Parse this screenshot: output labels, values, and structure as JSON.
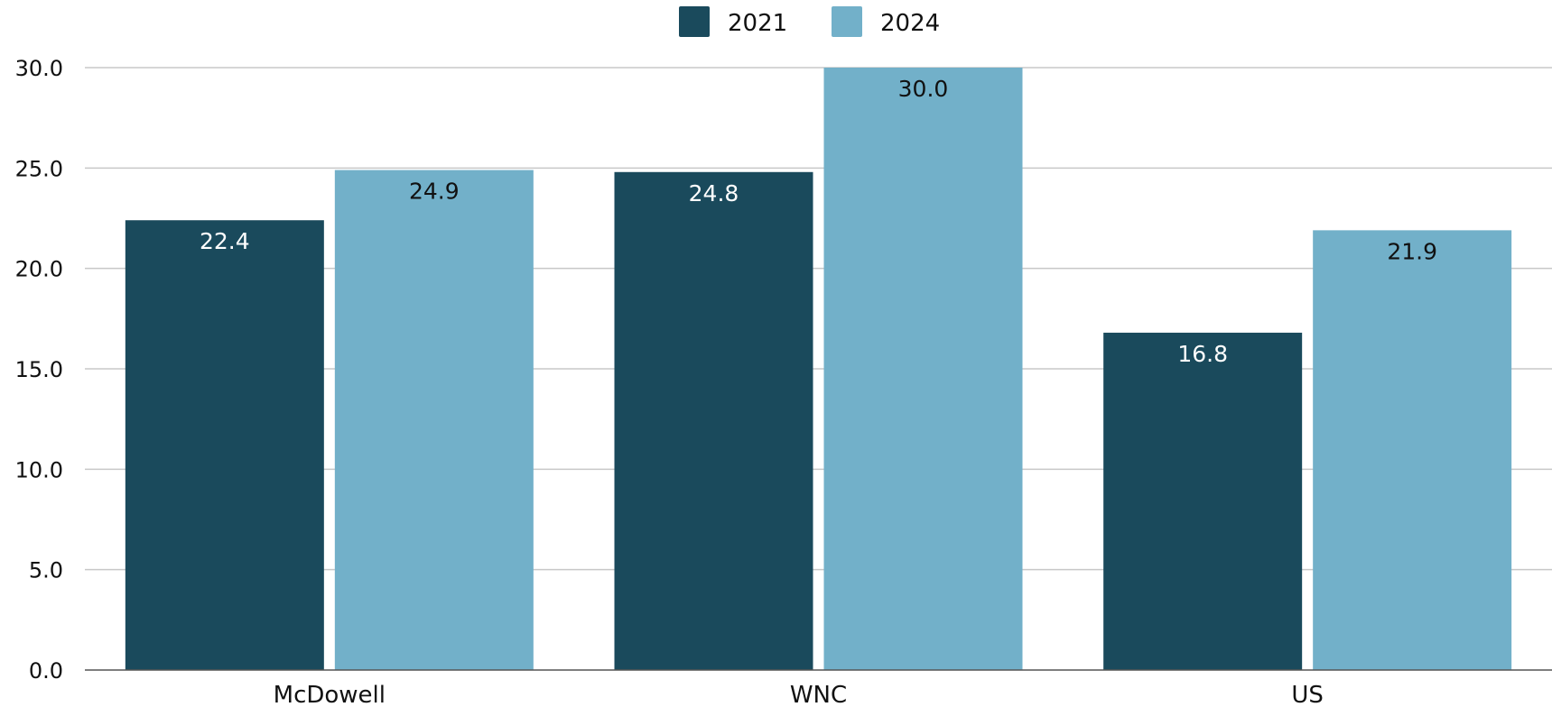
{
  "chart_data": {
    "type": "bar",
    "categories": [
      "McDowell",
      "WNC",
      "US"
    ],
    "series": [
      {
        "name": "2021",
        "values": [
          22.4,
          24.8,
          16.8
        ],
        "color": "#1a4a5c",
        "label_color": "#ffffff"
      },
      {
        "name": "2024",
        "values": [
          24.9,
          30.0,
          21.9
        ],
        "color": "#72b0c9",
        "label_color": "#111111"
      }
    ],
    "y_ticks": [
      "0.0",
      "5.0",
      "10.0",
      "15.0",
      "20.0",
      "25.0",
      "30.0"
    ],
    "ylim": [
      0,
      30
    ],
    "legend_position": "top-center",
    "grid": true,
    "data_labels": [
      [
        "22.4",
        "24.8",
        "16.8"
      ],
      [
        "24.9",
        "30.0",
        "21.9"
      ]
    ]
  }
}
